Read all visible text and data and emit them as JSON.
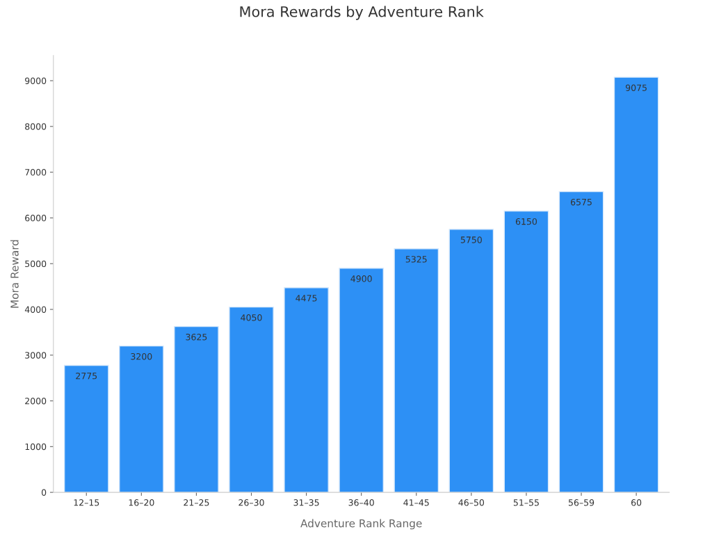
{
  "chart_data": {
    "type": "bar",
    "title": "Mora Rewards by Adventure Rank",
    "xlabel": "Adventure Rank Range",
    "ylabel": "Mora Reward",
    "categories": [
      "12–15",
      "16–20",
      "21–25",
      "26–30",
      "31–35",
      "36–40",
      "41–45",
      "46–50",
      "51–55",
      "56–59",
      "60"
    ],
    "values": [
      2775,
      3200,
      3625,
      4050,
      4475,
      4900,
      5325,
      5750,
      6150,
      6575,
      9075
    ],
    "color": "#2d90f5",
    "ylim": [
      0,
      9550
    ],
    "yticks": [
      0,
      1000,
      2000,
      3000,
      4000,
      5000,
      6000,
      7000,
      8000,
      9000
    ],
    "data_labels": true,
    "grid": false,
    "legend": false
  }
}
